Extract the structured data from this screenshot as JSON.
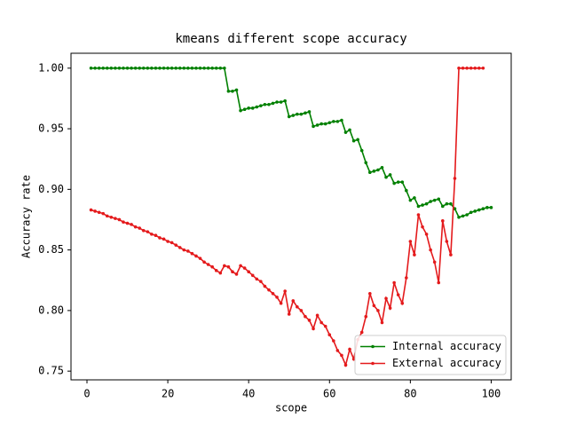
{
  "chart_data": {
    "type": "line",
    "title": "kmeans different scope accuracy",
    "xlabel": "scope",
    "ylabel": "Accuracy rate",
    "x": [
      1,
      2,
      3,
      4,
      5,
      6,
      7,
      8,
      9,
      10,
      11,
      12,
      13,
      14,
      15,
      16,
      17,
      18,
      19,
      20,
      21,
      22,
      23,
      24,
      25,
      26,
      27,
      28,
      29,
      30,
      31,
      32,
      33,
      34,
      35,
      36,
      37,
      38,
      39,
      40,
      41,
      42,
      43,
      44,
      45,
      46,
      47,
      48,
      49,
      50,
      51,
      52,
      53,
      54,
      55,
      56,
      57,
      58,
      59,
      60,
      61,
      62,
      63,
      64,
      65,
      66,
      67,
      68,
      69,
      70,
      71,
      72,
      73,
      74,
      75,
      76,
      77,
      78,
      79,
      80,
      81,
      82,
      83,
      84,
      85,
      86,
      87,
      88,
      89,
      90,
      91,
      92,
      93,
      94,
      95,
      96,
      97,
      98,
      99,
      100
    ],
    "series": [
      {
        "name": "Internal accuracy",
        "color": "#008000",
        "values": [
          1.0,
          1.0,
          1.0,
          1.0,
          1.0,
          1.0,
          1.0,
          1.0,
          1.0,
          1.0,
          1.0,
          1.0,
          1.0,
          1.0,
          1.0,
          1.0,
          1.0,
          1.0,
          1.0,
          1.0,
          1.0,
          1.0,
          1.0,
          1.0,
          1.0,
          1.0,
          1.0,
          1.0,
          1.0,
          1.0,
          1.0,
          1.0,
          1.0,
          1.0,
          0.981,
          0.981,
          0.982,
          0.965,
          0.966,
          0.967,
          0.967,
          0.968,
          0.969,
          0.97,
          0.97,
          0.971,
          0.972,
          0.972,
          0.973,
          0.96,
          0.961,
          0.962,
          0.962,
          0.963,
          0.964,
          0.952,
          0.953,
          0.954,
          0.954,
          0.955,
          0.956,
          0.956,
          0.957,
          0.947,
          0.949,
          0.94,
          0.941,
          0.932,
          0.922,
          0.914,
          0.915,
          0.916,
          0.918,
          0.91,
          0.912,
          0.905,
          0.906,
          0.906,
          0.899,
          0.891,
          0.893,
          0.886,
          0.887,
          0.888,
          0.89,
          0.891,
          0.892,
          0.886,
          0.888,
          0.888,
          0.884,
          0.877,
          0.878,
          0.879,
          0.881,
          0.882,
          0.883,
          0.884,
          0.885,
          0.885
        ]
      },
      {
        "name": "External accuracy",
        "color": "#e41a1c",
        "values": [
          0.883,
          0.882,
          0.881,
          0.88,
          0.878,
          0.877,
          0.876,
          0.875,
          0.873,
          0.872,
          0.871,
          0.869,
          0.868,
          0.866,
          0.865,
          0.863,
          0.862,
          0.86,
          0.859,
          0.857,
          0.856,
          0.854,
          0.852,
          0.85,
          0.849,
          0.847,
          0.845,
          0.843,
          0.84,
          0.838,
          0.836,
          0.833,
          0.831,
          0.837,
          0.836,
          0.832,
          0.83,
          0.837,
          0.835,
          0.832,
          0.829,
          0.826,
          0.824,
          0.82,
          0.817,
          0.814,
          0.811,
          0.806,
          0.816,
          0.797,
          0.808,
          0.803,
          0.8,
          0.795,
          0.792,
          0.785,
          0.796,
          0.79,
          0.787,
          0.78,
          0.775,
          0.767,
          0.763,
          0.755,
          0.768,
          0.76,
          0.776,
          0.782,
          0.795,
          0.814,
          0.804,
          0.8,
          0.79,
          0.81,
          0.802,
          0.823,
          0.813,
          0.806,
          0.827,
          0.857,
          0.846,
          0.879,
          0.869,
          0.863,
          0.85,
          0.84,
          0.823,
          0.874,
          0.857,
          0.846,
          0.909,
          1.0,
          1.0,
          1.0,
          1.0,
          1.0,
          1.0,
          1.0,
          null,
          null
        ]
      }
    ],
    "xlim": [
      -3.95,
      104.95
    ],
    "xticks": [
      0,
      20,
      40,
      60,
      80,
      100
    ],
    "ylim": [
      0.7428,
      1.0123
    ],
    "yticks": [
      0.75,
      {
        "value": 0.8,
        "label": "0.80"
      },
      0.85,
      {
        "value": 0.9,
        "label": "0.90"
      },
      0.95,
      {
        "value": 1.0,
        "label": "1.00"
      }
    ],
    "legend": "lower right"
  }
}
